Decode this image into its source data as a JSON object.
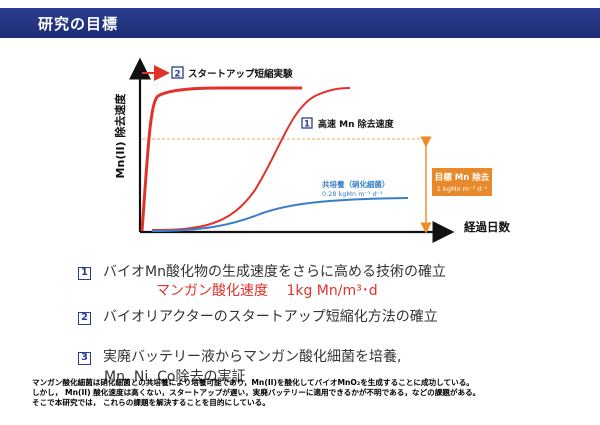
{
  "header": {
    "title": "研究の目標"
  },
  "chart_data": {
    "type": "line",
    "ylabel": "Mn(II) 除去速度",
    "xlabel": "経過日数",
    "series": [
      {
        "name": "2 スタートアップ短縮実験",
        "color": "#e0332b"
      },
      {
        "name": "1 高速 Mn 除去速度",
        "color": "#e0332b"
      },
      {
        "name": "共培養（硝化細菌）",
        "color": "#3a7dc9"
      }
    ],
    "annotations": {
      "startup_label_num": "2",
      "startup_label_text": "スタートアップ短縮実験",
      "fast_label_num": "1",
      "fast_label_text": "高速 Mn 除去速度",
      "coculture_label": "共培養（硝化細菌）",
      "coculture_rate": "0.28 kgMn m⁻³ d⁻¹",
      "target_title": "目標 Mn 除去",
      "target_rate": "1 kgMn m⁻³ d⁻¹"
    }
  },
  "goals": {
    "item1_num": "1",
    "item1_text": "バイオMn酸化物の生成速度をさらに高める技術の確立",
    "item1_sub": "マンガン酸化速度　 1kg Mn/m³･d",
    "item2_num": "2",
    "item2_text": "バイオリアクターのスタートアップ短縮化方法の確立",
    "item3_num": "3",
    "item3_text": "実廃バッテリー液からマンガン酸化細菌を培養,",
    "item3_text2": "Mn, Ni, Co除去の実証"
  },
  "footnote": {
    "line1": "マンガン酸化細菌は硝化細菌との共培養により培養可能であり，Mn(II)を酸化してバイオMnO₂を生成することに成功している。",
    "line2": "しかし， Mn(II) 酸化速度は高くない，スタートアップが遅い，実廃バッテリーに適用できるかが不明である，などの課題がある。",
    "line3": "そこで本研究では， これらの課題を解決することを目的にしている。"
  },
  "colors": {
    "accent": "#2a3d8f",
    "red": "#e0332b",
    "blue": "#3a7dc9",
    "target": "#f08a24"
  }
}
